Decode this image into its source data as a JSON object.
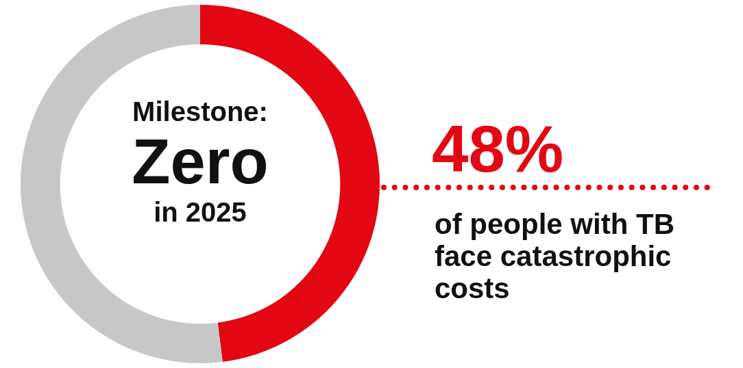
{
  "chart_data": {
    "type": "donut",
    "categories": [
      "of people with TB face catastrophic costs",
      null
    ],
    "values": [
      48,
      52
    ],
    "colors": [
      "#e30613",
      "#c8c7c8"
    ],
    "value_labels": [
      "48%",
      null
    ],
    "annotations": [
      "Milestone:",
      "Zero",
      "in 2025"
    ]
  }
}
